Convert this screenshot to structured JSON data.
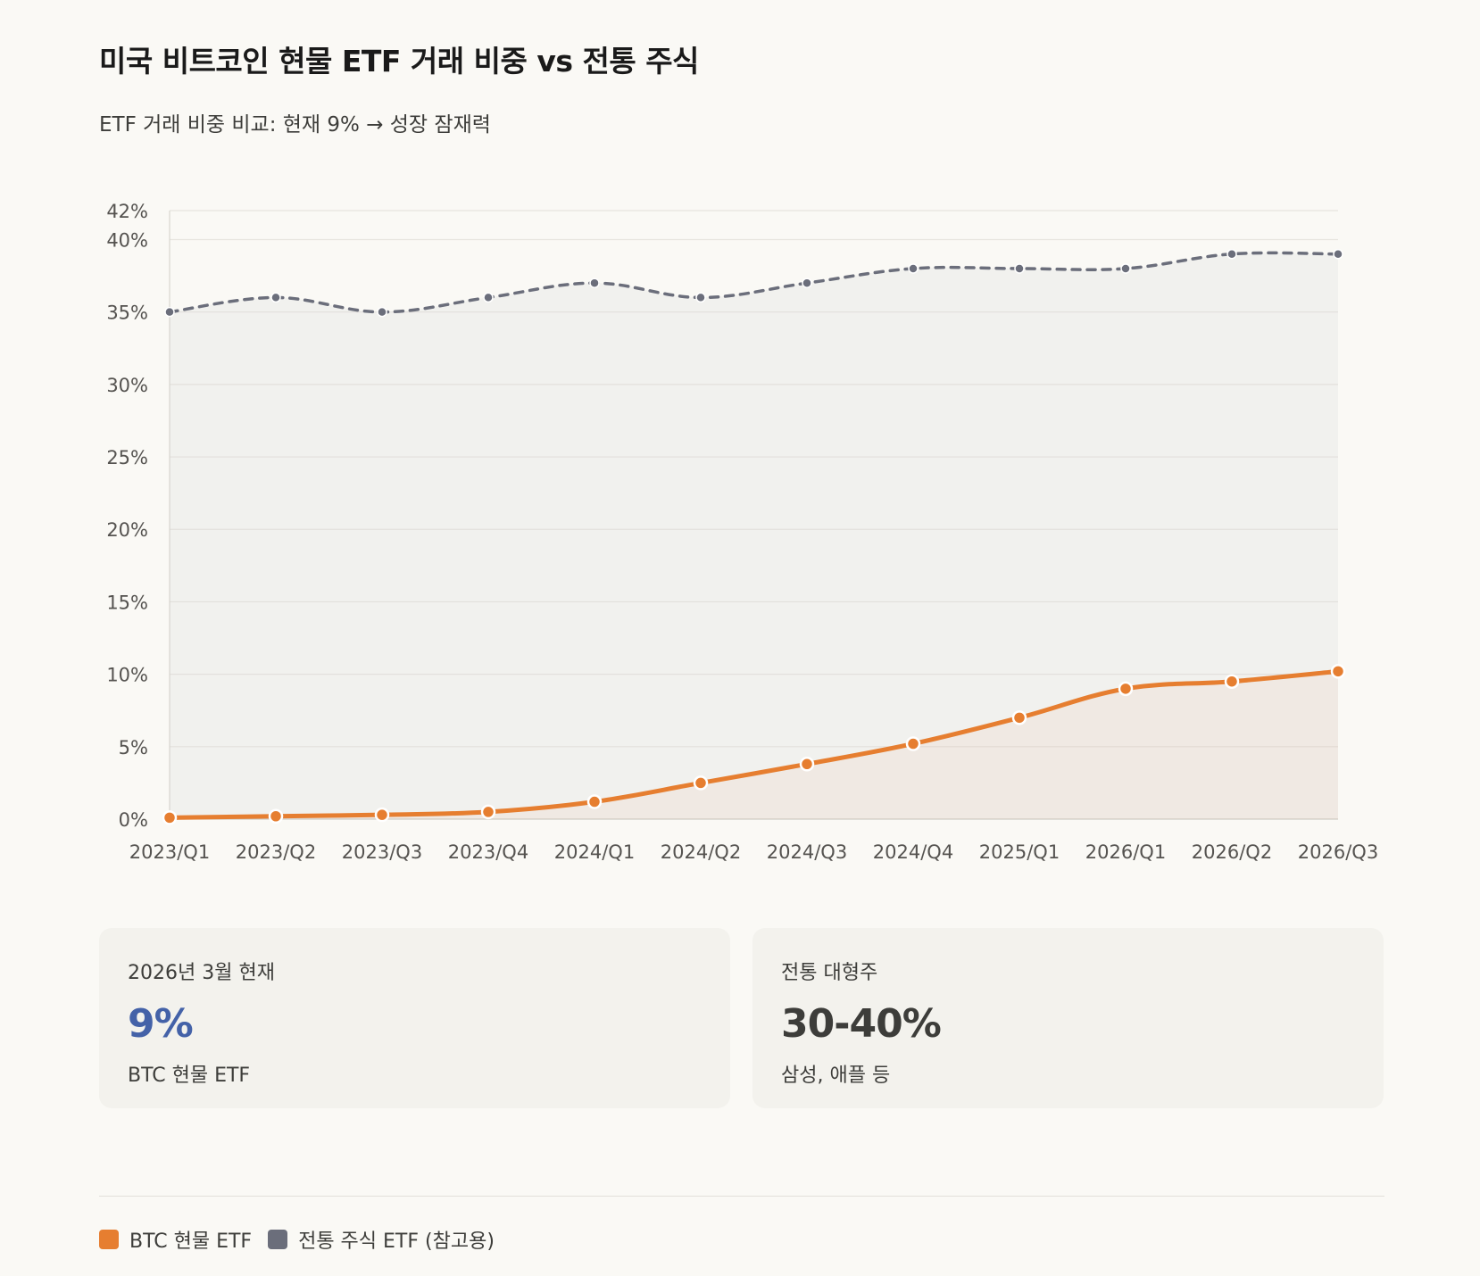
{
  "title": "미국 비트코인 현물 ETF 거래 비중 vs 전통 주식",
  "subtitle": "ETF 거래 비중 비교: 현재 9% → 성장 잠재력",
  "colors": {
    "btc": "#e67e30",
    "traditional": "#6b6e7b",
    "btc_value": "#4462a8",
    "traditional_value": "#3d3d3a"
  },
  "chart_data": {
    "type": "line",
    "title": "미국 비트코인 현물 ETF 거래 비중 vs 전통 주식",
    "xlabel": "",
    "ylabel": "",
    "categories": [
      "2023/Q1",
      "2023/Q2",
      "2023/Q3",
      "2023/Q4",
      "2024/Q1",
      "2024/Q2",
      "2024/Q3",
      "2024/Q4",
      "2025/Q1",
      "2026/Q1",
      "2026/Q2",
      "2026/Q3"
    ],
    "ylim": [
      0,
      42
    ],
    "yticks": [
      0,
      5,
      10,
      15,
      20,
      25,
      30,
      35,
      40,
      42
    ],
    "ytick_labels": [
      "0%",
      "5%",
      "10%",
      "15%",
      "20%",
      "25%",
      "30%",
      "35%",
      "40%",
      "42%"
    ],
    "grid": true,
    "series": [
      {
        "name": "BTC 현물 ETF",
        "style": "solid",
        "values": [
          0.1,
          0.2,
          0.3,
          0.5,
          1.2,
          2.5,
          3.8,
          5.2,
          7.0,
          9.0,
          9.5,
          10.2
        ]
      },
      {
        "name": "전통 주식 ETF (참고용)",
        "style": "dashed",
        "values": [
          35,
          36,
          35,
          36,
          37,
          36,
          37,
          38,
          38,
          38,
          39,
          39
        ]
      }
    ]
  },
  "stats": [
    {
      "label": "2026년 3월 현재",
      "value": "9%",
      "desc": "BTC 현물 ETF"
    },
    {
      "label": "전통 대형주",
      "value": "30-40%",
      "desc": "삼성, 애플 등"
    }
  ],
  "legend": [
    {
      "label": "BTC 현물 ETF",
      "color": "#e67e30"
    },
    {
      "label": "전통 주식 ETF (참고용)",
      "color": "#6b6e7b"
    }
  ]
}
